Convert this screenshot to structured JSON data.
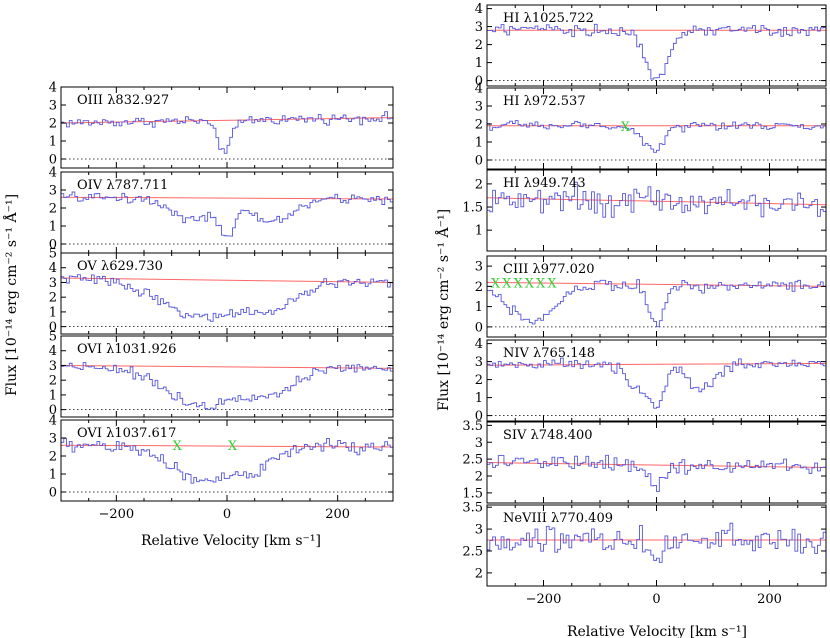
{
  "figure": {
    "left_ylabel": "Flux [10⁻¹⁴ erg cm⁻² s⁻¹ Å⁻¹]",
    "right_ylabel": "Flux [10⁻¹⁴ erg cm⁻² s⁻¹ Å⁻¹]",
    "left_xlabel": "Relative Velocity [km s⁻¹]",
    "right_xlabel": "Relative Velocity [km s⁻¹]",
    "colors": {
      "spectrum": "#5555dd",
      "continuum": "#ff6666",
      "marker": "#33cc33",
      "axis": "#000000"
    }
  },
  "chart_data": [
    {
      "type": "line",
      "column": "left",
      "title": "OIII λ832.927",
      "xlim": [
        -300,
        300
      ],
      "ylim": [
        -0.5,
        4
      ],
      "yticks": [
        0,
        1,
        2,
        3,
        4
      ],
      "xtick_labels": false,
      "continuum": [
        [
          -300,
          2.0
        ],
        [
          300,
          2.3
        ]
      ],
      "absorption": [
        {
          "center": -5,
          "width": 14,
          "depth": 0.75
        }
      ],
      "noise": 0.17,
      "bin_width": 5,
      "markers": []
    },
    {
      "type": "line",
      "column": "left",
      "title": "OIV λ787.711",
      "xlim": [
        -300,
        300
      ],
      "ylim": [
        -0.5,
        4
      ],
      "yticks": [
        0,
        1,
        2,
        3,
        4
      ],
      "xtick_labels": false,
      "continuum": [
        [
          -300,
          2.6
        ],
        [
          300,
          2.5
        ]
      ],
      "absorption": [
        {
          "center": -60,
          "width": 40,
          "depth": 0.45
        },
        {
          "center": 0,
          "width": 14,
          "depth": 0.85
        },
        {
          "center": 80,
          "width": 40,
          "depth": 0.5
        }
      ],
      "noise": 0.17,
      "bin_width": 5,
      "markers": []
    },
    {
      "type": "line",
      "column": "left",
      "title": "OV λ629.730",
      "xlim": [
        -300,
        300
      ],
      "ylim": [
        -0.5,
        5
      ],
      "yticks": [
        0,
        1,
        2,
        3,
        4,
        5
      ],
      "xtick_labels": false,
      "continuum": [
        [
          -300,
          3.3
        ],
        [
          300,
          3.0
        ]
      ],
      "absorption": [
        {
          "center": -40,
          "width": 75,
          "depth": 0.8
        },
        {
          "center": 80,
          "width": 45,
          "depth": 0.6
        }
      ],
      "noise": 0.2,
      "bin_width": 5,
      "markers": []
    },
    {
      "type": "line",
      "column": "left",
      "title": "OVI λ1031.926",
      "xlim": [
        -300,
        300
      ],
      "ylim": [
        -0.5,
        5
      ],
      "yticks": [
        0,
        1,
        2,
        3,
        4,
        5
      ],
      "xtick_labels": false,
      "continuum": [
        [
          -300,
          3.0
        ],
        [
          300,
          2.8
        ]
      ],
      "absorption": [
        {
          "center": -40,
          "width": 70,
          "depth": 0.9
        },
        {
          "center": 80,
          "width": 45,
          "depth": 0.55
        }
      ],
      "noise": 0.2,
      "bin_width": 5,
      "markers": []
    },
    {
      "type": "line",
      "column": "left",
      "title": "OVI λ1037.617",
      "xlim": [
        -300,
        300
      ],
      "ylim": [
        -0.5,
        4
      ],
      "yticks": [
        0,
        1,
        2,
        3,
        4
      ],
      "xticks": [
        -200,
        0,
        200
      ],
      "xtick_labels": true,
      "continuum": [
        [
          -300,
          2.6
        ],
        [
          300,
          2.5
        ]
      ],
      "absorption": [
        {
          "center": -50,
          "width": 55,
          "depth": 0.7
        },
        {
          "center": 40,
          "width": 40,
          "depth": 0.55
        }
      ],
      "noise": 0.25,
      "bin_width": 5,
      "markers": [
        {
          "x": -90,
          "y": 2.6
        },
        {
          "x": 10,
          "y": 2.6
        }
      ]
    },
    {
      "type": "line",
      "column": "right",
      "title": "HI λ1025.722",
      "xlim": [
        -300,
        300
      ],
      "ylim": [
        -0.3,
        4.2
      ],
      "yticks": [
        0,
        1,
        2,
        3,
        4
      ],
      "xtick_labels": false,
      "continuum": [
        [
          -300,
          2.8
        ],
        [
          300,
          2.8
        ]
      ],
      "absorption": [
        {
          "center": 0,
          "width": 20,
          "depth": 0.95
        }
      ],
      "noise": 0.2,
      "bin_width": 5,
      "markers": []
    },
    {
      "type": "line",
      "column": "right",
      "title": "HI λ972.537",
      "xlim": [
        -300,
        300
      ],
      "ylim": [
        -0.5,
        4
      ],
      "yticks": [
        0,
        1,
        2,
        3,
        4
      ],
      "xtick_labels": false,
      "continuum": [
        [
          -300,
          1.9
        ],
        [
          300,
          1.9
        ]
      ],
      "absorption": [
        {
          "center": -5,
          "width": 18,
          "depth": 0.7
        }
      ],
      "noise": 0.15,
      "bin_width": 5,
      "markers": [
        {
          "x": -55,
          "y": 1.9
        }
      ]
    },
    {
      "type": "line",
      "column": "right",
      "title": "HI λ949.743",
      "xlim": [
        -300,
        300
      ],
      "ylim": [
        0.55,
        2.3
      ],
      "yticks": [
        1,
        1.5,
        2
      ],
      "xtick_labels": false,
      "continuum": [
        [
          -300,
          1.7
        ],
        [
          300,
          1.55
        ]
      ],
      "absorption": [],
      "noise": 0.18,
      "bin_width": 5,
      "markers": []
    },
    {
      "type": "line",
      "column": "right",
      "title": "CIII λ977.020",
      "xlim": [
        -300,
        300
      ],
      "ylim": [
        -0.5,
        3.5
      ],
      "yticks": [
        0,
        1,
        2,
        3
      ],
      "xtick_labels": false,
      "continuum": [
        [
          -300,
          2.2
        ],
        [
          300,
          2.0
        ]
      ],
      "absorption": [
        {
          "center": -220,
          "width": 40,
          "depth": 0.9
        },
        {
          "center": 0,
          "width": 14,
          "depth": 0.9
        }
      ],
      "noise": 0.18,
      "bin_width": 5,
      "markers": [
        {
          "x": -285,
          "y": 2.2
        },
        {
          "x": -265,
          "y": 2.2
        },
        {
          "x": -245,
          "y": 2.2
        },
        {
          "x": -225,
          "y": 2.2
        },
        {
          "x": -205,
          "y": 2.2
        },
        {
          "x": -185,
          "y": 2.2
        }
      ]
    },
    {
      "type": "line",
      "column": "right",
      "title": "NIV λ765.148",
      "xlim": [
        -300,
        300
      ],
      "ylim": [
        -0.3,
        4.2
      ],
      "yticks": [
        0,
        1,
        2,
        3,
        4
      ],
      "xtick_labels": false,
      "continuum": [
        [
          -300,
          2.8
        ],
        [
          300,
          2.9
        ]
      ],
      "absorption": [
        {
          "center": -30,
          "width": 20,
          "depth": 0.5
        },
        {
          "center": 0,
          "width": 12,
          "depth": 0.9
        },
        {
          "center": 80,
          "width": 25,
          "depth": 0.5
        }
      ],
      "noise": 0.18,
      "bin_width": 5,
      "markers": []
    },
    {
      "type": "line",
      "column": "right",
      "title": "SIV λ748.400",
      "xlim": [
        -300,
        300
      ],
      "ylim": [
        1.2,
        3.6
      ],
      "yticks": [
        1.5,
        2,
        2.5,
        3,
        3.5
      ],
      "xtick_labels": false,
      "continuum": [
        [
          -300,
          2.4
        ],
        [
          300,
          2.25
        ]
      ],
      "absorption": [
        {
          "center": 0,
          "width": 15,
          "depth": 0.25
        }
      ],
      "noise": 0.13,
      "bin_width": 5,
      "markers": []
    },
    {
      "type": "line",
      "column": "right",
      "title": "NeVIII λ770.409",
      "xlim": [
        -300,
        300
      ],
      "ylim": [
        1.7,
        3.55
      ],
      "yticks": [
        2,
        2.5,
        3,
        3.5
      ],
      "xticks": [
        -200,
        0,
        200
      ],
      "xtick_labels": true,
      "continuum": [
        [
          -300,
          2.75
        ],
        [
          300,
          2.75
        ]
      ],
      "absorption": [
        {
          "center": 0,
          "width": 12,
          "depth": 0.2
        }
      ],
      "noise": 0.2,
      "bin_width": 5,
      "markers": []
    }
  ]
}
